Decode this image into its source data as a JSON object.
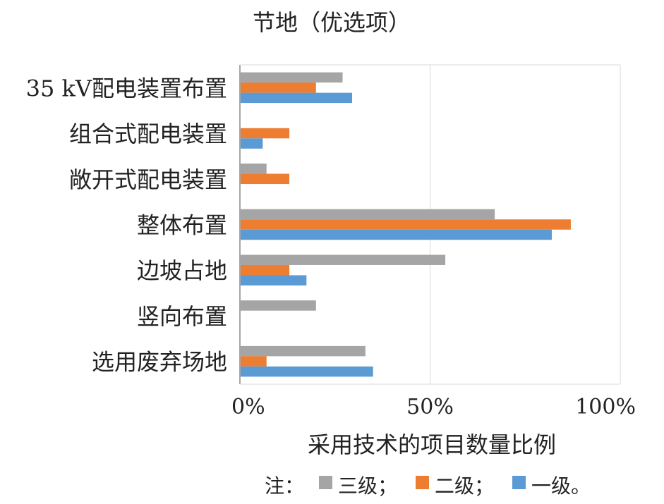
{
  "chart_data": {
    "type": "bar",
    "orientation": "horizontal",
    "title": "节地（优选项）",
    "xlabel": "采用技术的项目数量比例",
    "ylabel": "",
    "xlim": [
      0,
      100
    ],
    "xticks": [
      "0%",
      "50%",
      "100%"
    ],
    "grid": true,
    "categories": [
      "35 kV配电装置布置",
      "组合式配电装置",
      "敞开式配电装置",
      "整体布置",
      "边坡占地",
      "竖向布置",
      "选用废弃场地"
    ],
    "series": [
      {
        "name": "三级",
        "color": "#a5a5a5",
        "values": [
          27,
          0,
          7,
          67,
          54,
          20,
          33
        ]
      },
      {
        "name": "二级",
        "color": "#ed7d31",
        "values": [
          20,
          13,
          13,
          87,
          13,
          0,
          7
        ]
      },
      {
        "name": "一级",
        "color": "#5b9bd5",
        "values": [
          29.5,
          6,
          0,
          82,
          17.5,
          0,
          35
        ]
      }
    ],
    "legend": {
      "placement": "bottom",
      "prefix": "注：",
      "entries": [
        "三级；",
        "二级；",
        "一级。"
      ]
    }
  }
}
